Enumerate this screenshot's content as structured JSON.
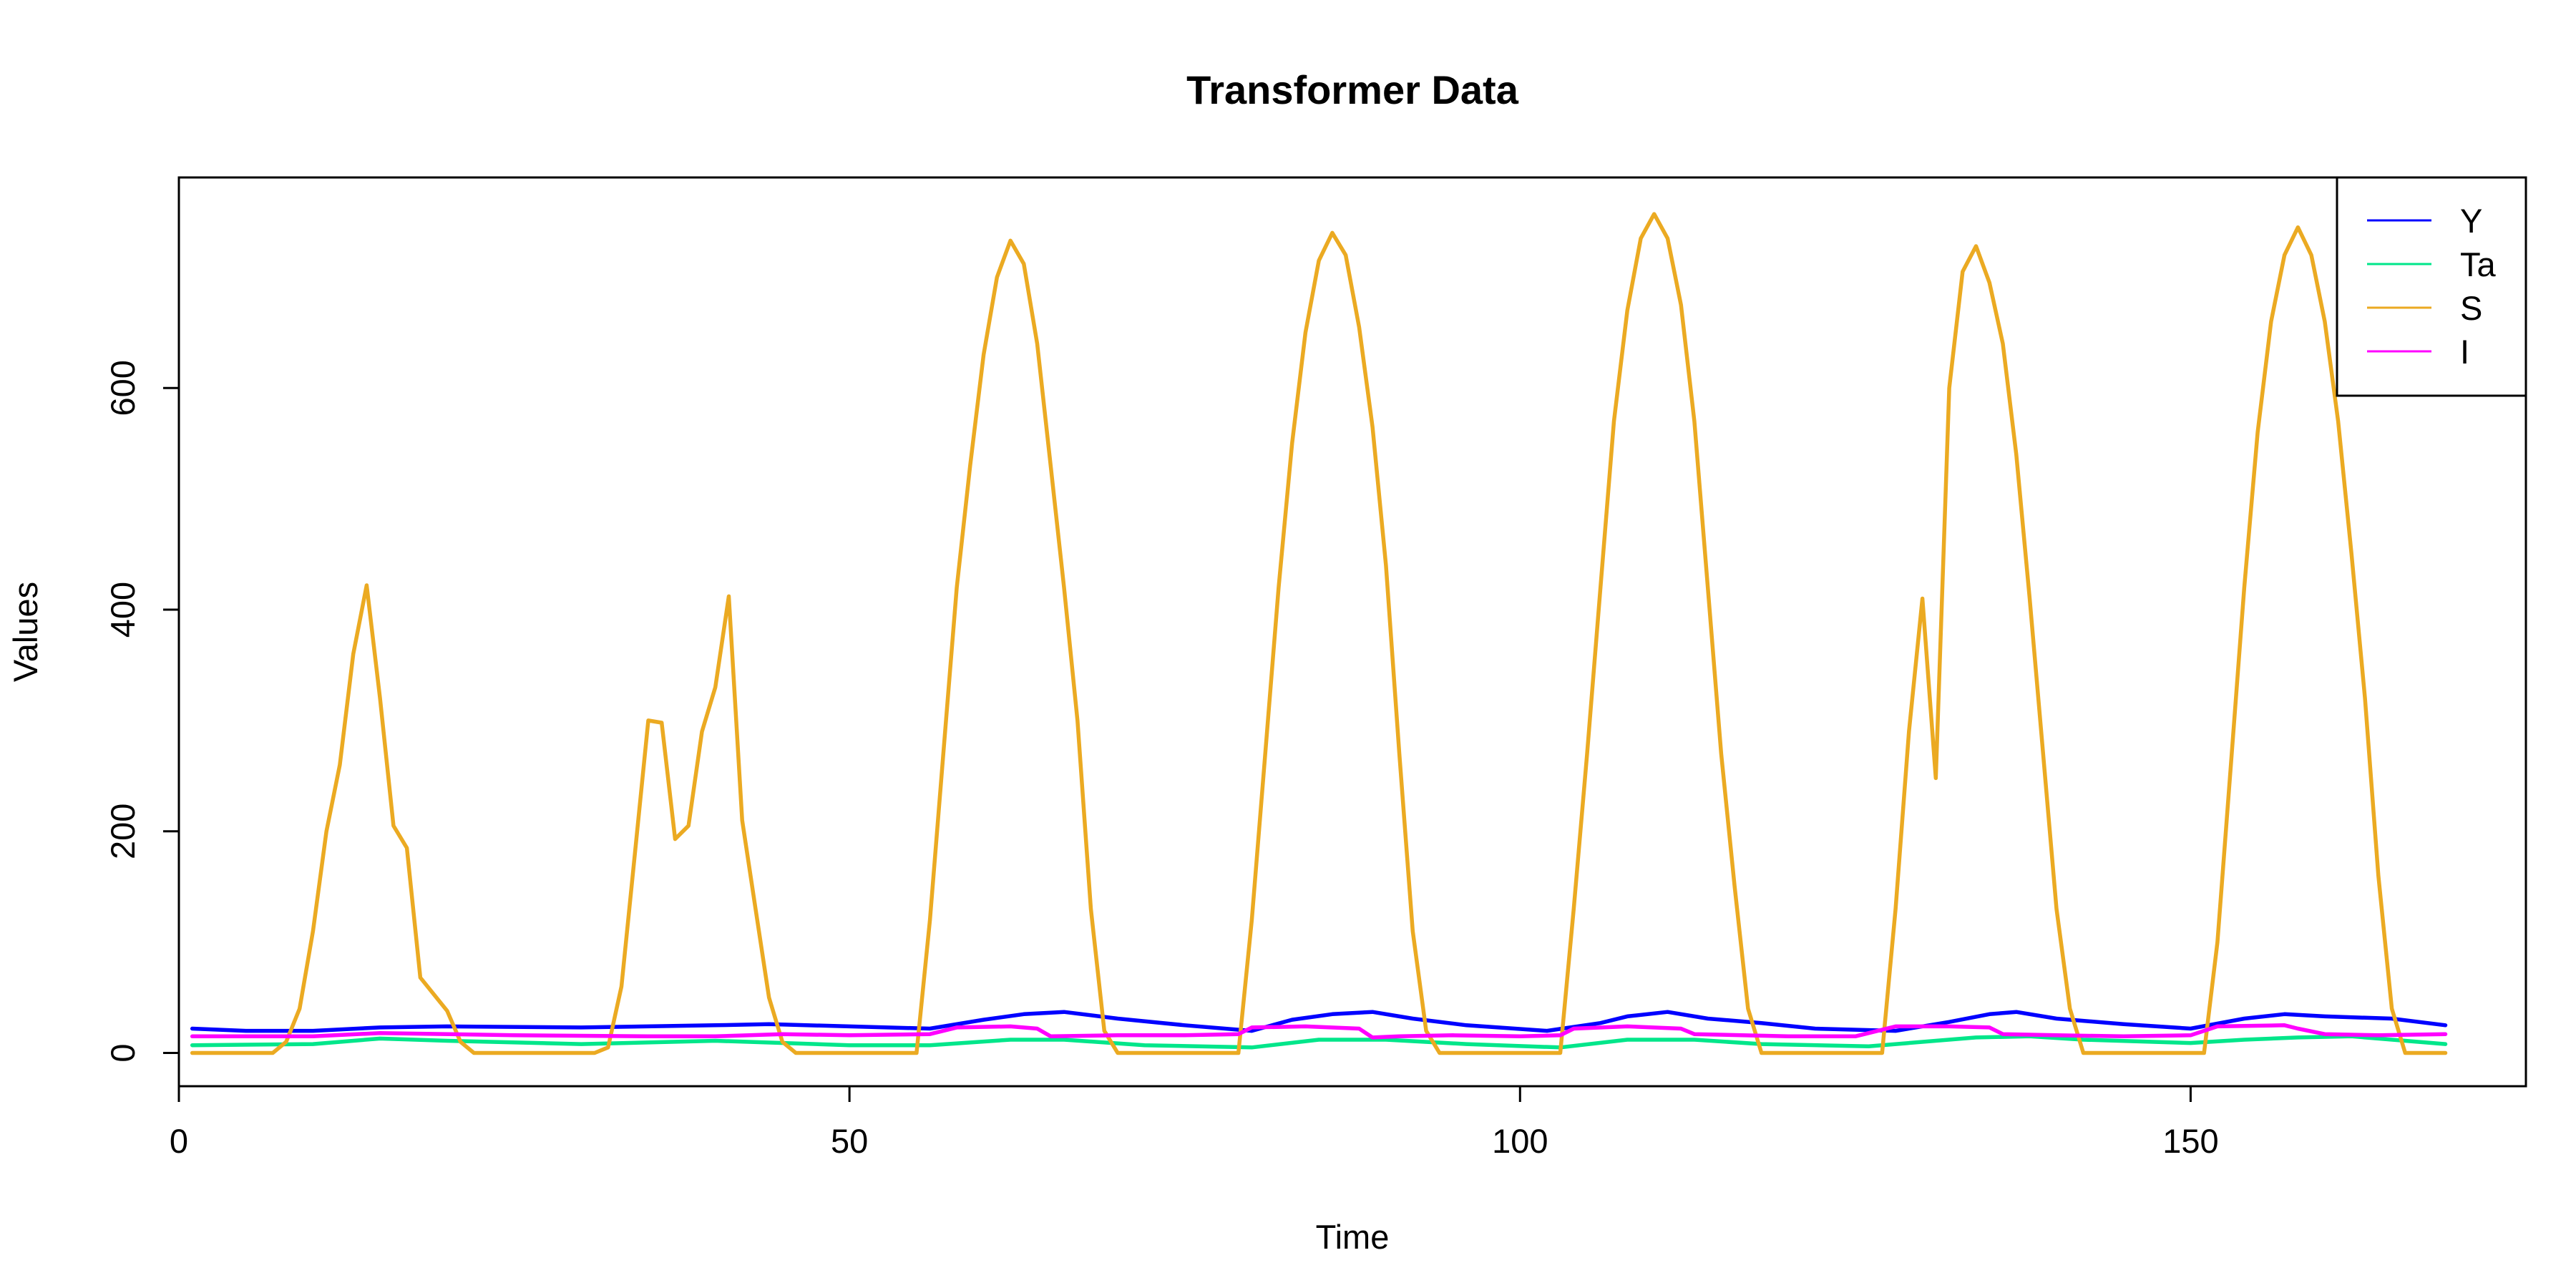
{
  "chart_data": {
    "type": "line",
    "title": "Transformer Data",
    "xlabel": "Time",
    "ylabel": "Values",
    "xlim": [
      0,
      175
    ],
    "ylim": [
      -30,
      790
    ],
    "xticks": [
      0,
      50,
      100,
      150
    ],
    "yticks": [
      0,
      200,
      400,
      600
    ],
    "grid": false,
    "legend_position": "top-right",
    "series": [
      {
        "name": "Y",
        "color": "#0000FF",
        "points": [
          [
            1,
            22
          ],
          [
            5,
            20
          ],
          [
            10,
            20
          ],
          [
            15,
            23
          ],
          [
            20,
            24
          ],
          [
            30,
            23
          ],
          [
            40,
            25
          ],
          [
            44,
            26
          ],
          [
            50,
            24
          ],
          [
            56,
            22
          ],
          [
            60,
            30
          ],
          [
            63,
            35
          ],
          [
            66,
            37
          ],
          [
            70,
            31
          ],
          [
            75,
            25
          ],
          [
            80,
            20
          ],
          [
            83,
            30
          ],
          [
            86,
            35
          ],
          [
            89,
            37
          ],
          [
            92,
            31
          ],
          [
            96,
            25
          ],
          [
            102,
            20
          ],
          [
            106,
            27
          ],
          [
            108,
            33
          ],
          [
            111,
            37
          ],
          [
            114,
            31
          ],
          [
            118,
            27
          ],
          [
            122,
            22
          ],
          [
            128,
            20
          ],
          [
            132,
            28
          ],
          [
            135,
            35
          ],
          [
            137,
            37
          ],
          [
            140,
            31
          ],
          [
            145,
            26
          ],
          [
            150,
            22
          ],
          [
            154,
            31
          ],
          [
            157,
            35
          ],
          [
            160,
            33
          ],
          [
            165,
            31
          ],
          [
            169,
            25
          ]
        ]
      },
      {
        "name": "Ta",
        "color": "#00E68A",
        "points": [
          [
            1,
            7
          ],
          [
            10,
            8
          ],
          [
            15,
            13
          ],
          [
            20,
            11
          ],
          [
            30,
            8
          ],
          [
            40,
            11
          ],
          [
            50,
            7
          ],
          [
            56,
            7
          ],
          [
            62,
            12
          ],
          [
            66,
            12
          ],
          [
            72,
            7
          ],
          [
            80,
            5
          ],
          [
            85,
            12
          ],
          [
            90,
            12
          ],
          [
            96,
            8
          ],
          [
            103,
            5
          ],
          [
            108,
            12
          ],
          [
            113,
            12
          ],
          [
            118,
            8
          ],
          [
            126,
            6
          ],
          [
            134,
            14
          ],
          [
            138,
            15
          ],
          [
            142,
            12
          ],
          [
            150,
            9
          ],
          [
            154,
            12
          ],
          [
            158,
            14
          ],
          [
            162,
            15
          ],
          [
            169,
            8
          ]
        ]
      },
      {
        "name": "S",
        "color": "#EBAA22",
        "points": [
          [
            1,
            0
          ],
          [
            7,
            0
          ],
          [
            8,
            10
          ],
          [
            9,
            40
          ],
          [
            10,
            110
          ],
          [
            11,
            200
          ],
          [
            12,
            260
          ],
          [
            13,
            360
          ],
          [
            14,
            422
          ],
          [
            15,
            320
          ],
          [
            16,
            205
          ],
          [
            17,
            185
          ],
          [
            18,
            68
          ],
          [
            20,
            38
          ],
          [
            21,
            10
          ],
          [
            22,
            0
          ],
          [
            31,
            0
          ],
          [
            32,
            5
          ],
          [
            33,
            60
          ],
          [
            34,
            180
          ],
          [
            35,
            300
          ],
          [
            36,
            298
          ],
          [
            37,
            193
          ],
          [
            38,
            205
          ],
          [
            39,
            290
          ],
          [
            40,
            330
          ],
          [
            41,
            412
          ],
          [
            42,
            210
          ],
          [
            43,
            130
          ],
          [
            44,
            50
          ],
          [
            45,
            10
          ],
          [
            46,
            0
          ],
          [
            55,
            0
          ],
          [
            56,
            120
          ],
          [
            57,
            270
          ],
          [
            58,
            420
          ],
          [
            59,
            530
          ],
          [
            60,
            630
          ],
          [
            61,
            700
          ],
          [
            62,
            733
          ],
          [
            63,
            712
          ],
          [
            64,
            640
          ],
          [
            65,
            530
          ],
          [
            66,
            420
          ],
          [
            67,
            300
          ],
          [
            68,
            130
          ],
          [
            69,
            20
          ],
          [
            70,
            0
          ],
          [
            79,
            0
          ],
          [
            80,
            120
          ],
          [
            81,
            270
          ],
          [
            82,
            420
          ],
          [
            83,
            550
          ],
          [
            84,
            650
          ],
          [
            85,
            715
          ],
          [
            86,
            740
          ],
          [
            87,
            720
          ],
          [
            88,
            655
          ],
          [
            89,
            565
          ],
          [
            90,
            440
          ],
          [
            91,
            270
          ],
          [
            92,
            110
          ],
          [
            93,
            20
          ],
          [
            94,
            0
          ],
          [
            103,
            0
          ],
          [
            104,
            130
          ],
          [
            105,
            270
          ],
          [
            106,
            420
          ],
          [
            107,
            570
          ],
          [
            108,
            670
          ],
          [
            109,
            735
          ],
          [
            110,
            757
          ],
          [
            111,
            735
          ],
          [
            112,
            675
          ],
          [
            113,
            570
          ],
          [
            114,
            420
          ],
          [
            115,
            270
          ],
          [
            116,
            150
          ],
          [
            117,
            40
          ],
          [
            118,
            0
          ],
          [
            127,
            0
          ],
          [
            128,
            130
          ],
          [
            129,
            290
          ],
          [
            130,
            410
          ],
          [
            131,
            248
          ],
          [
            132,
            600
          ],
          [
            133,
            705
          ],
          [
            134,
            728
          ],
          [
            135,
            695
          ],
          [
            136,
            640
          ],
          [
            137,
            540
          ],
          [
            138,
            410
          ],
          [
            139,
            270
          ],
          [
            140,
            130
          ],
          [
            141,
            40
          ],
          [
            142,
            0
          ],
          [
            151,
            0
          ],
          [
            152,
            100
          ],
          [
            153,
            260
          ],
          [
            154,
            420
          ],
          [
            155,
            560
          ],
          [
            156,
            660
          ],
          [
            157,
            720
          ],
          [
            158,
            745
          ],
          [
            159,
            720
          ],
          [
            160,
            660
          ],
          [
            161,
            570
          ],
          [
            162,
            450
          ],
          [
            163,
            320
          ],
          [
            164,
            160
          ],
          [
            165,
            40
          ],
          [
            166,
            0
          ],
          [
            169,
            0
          ]
        ]
      },
      {
        "name": "I",
        "color": "#FF00FF",
        "points": [
          [
            1,
            15
          ],
          [
            10,
            15
          ],
          [
            15,
            18
          ],
          [
            25,
            16
          ],
          [
            35,
            15
          ],
          [
            40,
            15
          ],
          [
            45,
            17
          ],
          [
            50,
            16
          ],
          [
            56,
            17
          ],
          [
            58,
            23
          ],
          [
            62,
            24
          ],
          [
            64,
            22
          ],
          [
            65,
            15
          ],
          [
            70,
            16
          ],
          [
            75,
            16
          ],
          [
            79,
            17
          ],
          [
            80,
            23
          ],
          [
            84,
            24
          ],
          [
            88,
            22
          ],
          [
            89,
            14
          ],
          [
            91,
            15
          ],
          [
            95,
            16
          ],
          [
            100,
            15
          ],
          [
            103,
            16
          ],
          [
            104,
            22
          ],
          [
            108,
            24
          ],
          [
            112,
            22
          ],
          [
            113,
            17
          ],
          [
            120,
            15
          ],
          [
            125,
            15
          ],
          [
            128,
            24
          ],
          [
            132,
            24
          ],
          [
            135,
            23
          ],
          [
            136,
            17
          ],
          [
            140,
            16
          ],
          [
            145,
            15
          ],
          [
            150,
            16
          ],
          [
            152,
            24
          ],
          [
            157,
            25
          ],
          [
            158,
            22
          ],
          [
            160,
            17
          ],
          [
            164,
            16
          ],
          [
            169,
            17
          ]
        ]
      }
    ]
  }
}
